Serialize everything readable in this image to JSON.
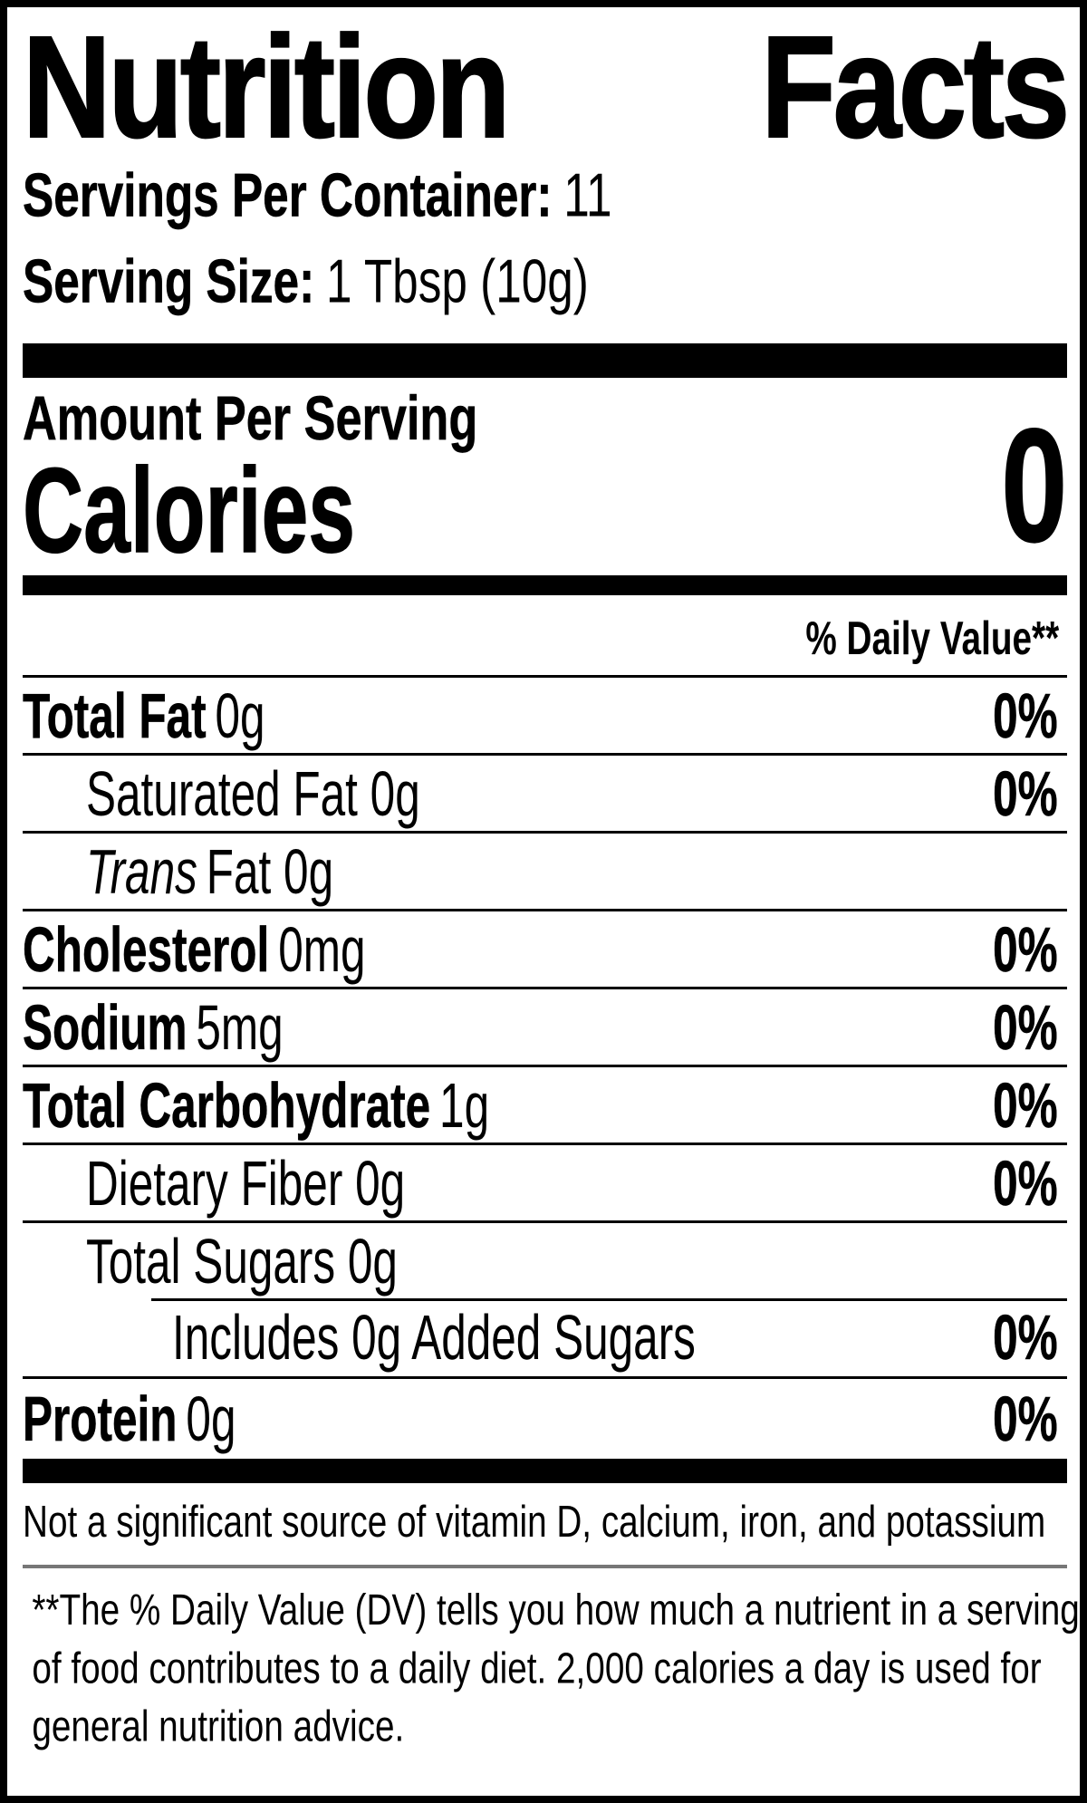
{
  "title": "Nutrition Facts",
  "serving_info": {
    "servings_label": "Servings Per Container:",
    "servings_value": "11",
    "serving_size_label": "Serving Size:",
    "serving_size_value": "1 Tbsp (10g)"
  },
  "amount_per_serving": "Amount Per Serving",
  "calories": {
    "label": "Calories",
    "value": "0"
  },
  "daily_value_header": "% Daily Value**",
  "rows": [
    {
      "label": "Total Fat",
      "amount": "0g",
      "dv": "0%"
    },
    {
      "label": "Saturated Fat 0g",
      "amount": "",
      "dv": "0%"
    },
    {
      "label_italic": "Trans",
      "label": "Fat 0g",
      "amount": "",
      "dv": ""
    },
    {
      "label": "Cholesterol",
      "amount": "0mg",
      "dv": "0%"
    },
    {
      "label": "Sodium",
      "amount": "5mg",
      "dv": "0%"
    },
    {
      "label": "Total Carbohydrate",
      "amount": "1g",
      "dv": "0%"
    },
    {
      "label": "Dietary Fiber 0g",
      "amount": "",
      "dv": "0%"
    },
    {
      "label": "Total Sugars 0g",
      "amount": "",
      "dv": ""
    },
    {
      "label": "Includes 0g Added Sugars",
      "amount": "",
      "dv": "0%"
    },
    {
      "label": "Protein",
      "amount": "0g",
      "dv": "0%"
    }
  ],
  "footer": {
    "not_significant": "Not a significant source of vitamin D, calcium, iron, and potassium",
    "daily_value_note": "**The % Daily Value (DV) tells you how much a nutrient in a serving of food contributes to a daily diet. 2,000 calories a day is used for general nutrition advice."
  },
  "colors": {
    "ink": "#000000",
    "background": "#ffffff",
    "divider_gray": "#777777"
  }
}
